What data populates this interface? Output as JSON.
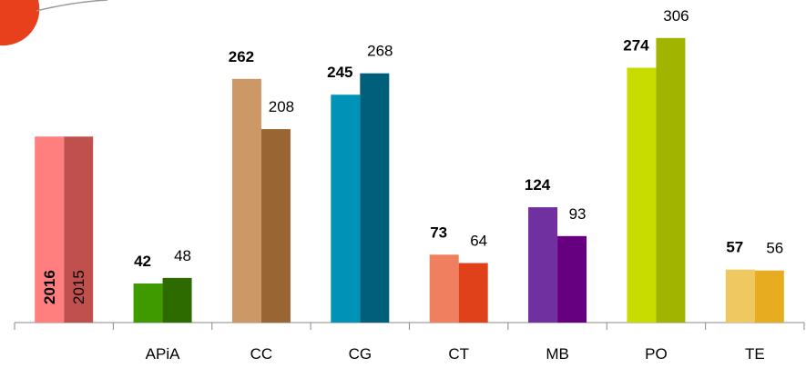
{
  "chart_data": {
    "type": "bar",
    "categories": [
      null,
      "APiA",
      "CC",
      "CG",
      "CT",
      "MB",
      "PO",
      "TE"
    ],
    "series": [
      {
        "name": "2016",
        "colors": [
          "#ff7f7f",
          "#3f9a00",
          "#cc9966",
          "#0093b8",
          "#f07f5f",
          "#7030a0",
          "#c8dc00",
          "#f0c860"
        ],
        "values": [
          200,
          42,
          262,
          245,
          73,
          124,
          274,
          57
        ]
      },
      {
        "name": "2015",
        "colors": [
          "#c0504d",
          "#2d6a00",
          "#996633",
          "#005f7a",
          "#e0401a",
          "#660080",
          "#a0b400",
          "#e8ac20"
        ],
        "values": [
          200,
          48,
          208,
          268,
          64,
          93,
          306,
          56
        ]
      }
    ],
    "ylim": [
      0,
      340
    ]
  }
}
